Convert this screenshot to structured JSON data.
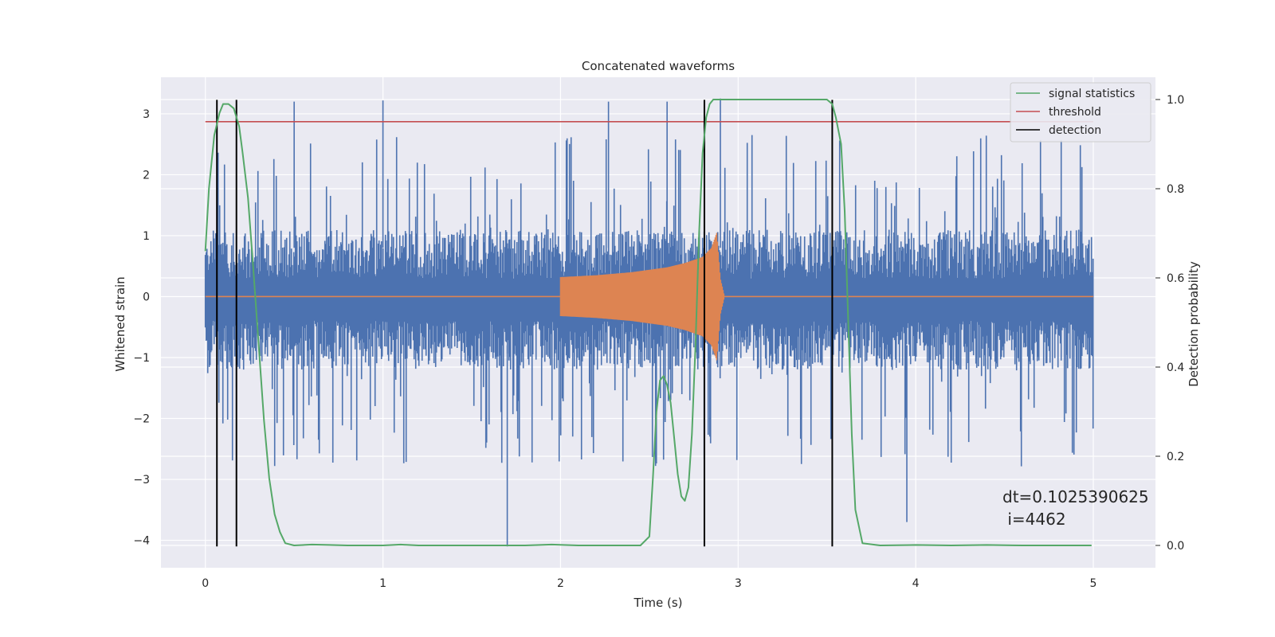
{
  "chart_data": {
    "type": "line",
    "title": "Concatenated waveforms",
    "xlabel": "Time (s)",
    "ylabel": "Whitened strain",
    "y2label": "Detection probability",
    "xlim": [
      -0.25,
      5.35
    ],
    "ylim": [
      -4.45,
      3.6
    ],
    "y2lim": [
      -0.05,
      1.05
    ],
    "x_ticks": [
      "0",
      "1",
      "2",
      "3",
      "4",
      "5"
    ],
    "y_ticks": [
      "−4",
      "−3",
      "−2",
      "−1",
      "0",
      "1",
      "2",
      "3"
    ],
    "y2_ticks": [
      "0.0",
      "0.2",
      "0.4",
      "0.6",
      "0.8",
      "1.0"
    ],
    "grid": true,
    "legend_position": "top-right",
    "series": [
      {
        "name": "signal statistics",
        "color": "#55a868",
        "axis": "right",
        "x": [
          0.0,
          0.02,
          0.05,
          0.08,
          0.1,
          0.13,
          0.16,
          0.19,
          0.21,
          0.24,
          0.27,
          0.3,
          0.33,
          0.36,
          0.39,
          0.42,
          0.45,
          0.5,
          0.6,
          0.7,
          0.8,
          0.9,
          1.0,
          1.1,
          1.2,
          1.4,
          1.6,
          1.8,
          1.95,
          2.1,
          2.3,
          2.45,
          2.5,
          2.52,
          2.54,
          2.56,
          2.58,
          2.6,
          2.62,
          2.64,
          2.66,
          2.68,
          2.7,
          2.72,
          2.74,
          2.76,
          2.78,
          2.8,
          2.82,
          2.84,
          2.86,
          2.88,
          2.9,
          3.0,
          3.2,
          3.4,
          3.5,
          3.53,
          3.55,
          3.58,
          3.6,
          3.62,
          3.64,
          3.66,
          3.7,
          3.8,
          4.0,
          4.2,
          4.4,
          4.6,
          4.8,
          4.99
        ],
        "values": [
          0.66,
          0.8,
          0.92,
          0.97,
          0.99,
          0.99,
          0.98,
          0.94,
          0.88,
          0.78,
          0.62,
          0.45,
          0.28,
          0.15,
          0.07,
          0.03,
          0.005,
          0.0,
          0.002,
          0.001,
          0.0,
          0.0,
          0.0,
          0.002,
          0.0,
          0.0,
          0.0,
          0.0,
          0.002,
          0.0,
          0.0,
          0.0,
          0.02,
          0.15,
          0.3,
          0.37,
          0.38,
          0.36,
          0.32,
          0.24,
          0.16,
          0.11,
          0.1,
          0.13,
          0.25,
          0.45,
          0.7,
          0.88,
          0.96,
          0.99,
          1.0,
          1.0,
          1.0,
          1.0,
          1.0,
          1.0,
          1.0,
          0.99,
          0.96,
          0.9,
          0.75,
          0.5,
          0.25,
          0.08,
          0.005,
          0.0,
          0.001,
          0.0,
          0.001,
          0.0,
          0.0,
          0.0
        ]
      },
      {
        "name": "threshold",
        "color": "#c44e52",
        "axis": "left",
        "x": [
          0.0,
          5.0
        ],
        "values": [
          2.87,
          2.87
        ]
      },
      {
        "name": "detection",
        "color": "#000000",
        "axis": "left",
        "x": [
          0.065,
          0.175,
          2.81,
          3.53
        ],
        "y_range": [
          -4.1,
          3.23
        ]
      },
      {
        "color": "#4c72b0",
        "axis": "left",
        "x_range": [
          0.0,
          5.0
        ],
        "band": [
          -1.2,
          1.1
        ],
        "spike_x": [
          0.5,
          1.0,
          1.7,
          2.27,
          2.6,
          2.9,
          3.95
        ],
        "spike_values": [
          3.2,
          3.22,
          -4.1,
          3.2,
          3.2,
          3.25,
          -3.7
        ]
      },
      {
        "color": "#dd8452",
        "axis": "left",
        "x": [
          2.0,
          2.2,
          2.4,
          2.6,
          2.7,
          2.8,
          2.85,
          2.88,
          2.9,
          2.92
        ],
        "envelope": [
          0.32,
          0.35,
          0.4,
          0.48,
          0.55,
          0.65,
          0.8,
          1.05,
          0.3,
          0.05
        ]
      }
    ],
    "annotations": [
      "dt=0.1025390625",
      " i=4462"
    ]
  }
}
